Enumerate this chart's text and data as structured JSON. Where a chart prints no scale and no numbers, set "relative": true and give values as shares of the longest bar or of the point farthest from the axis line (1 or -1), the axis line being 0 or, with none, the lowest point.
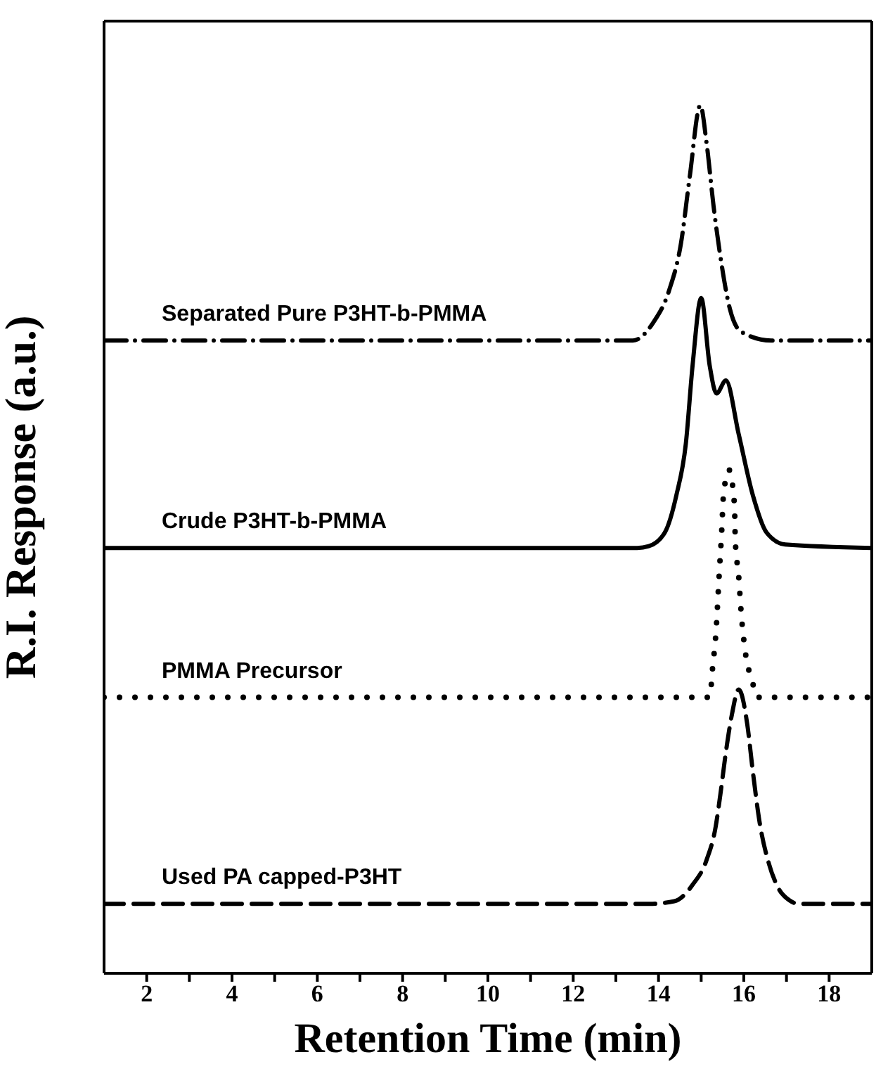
{
  "chart_data": {
    "type": "line",
    "relative": true,
    "xlabel": "Retention Time (min)",
    "ylabel": "R.I. Response (a.u.)",
    "xlim": [
      1,
      19
    ],
    "xticks": [
      2,
      {
        "value": 3,
        "label": null
      },
      4,
      {
        "value": 5,
        "label": null
      },
      6,
      {
        "value": 7,
        "label": null
      },
      8,
      {
        "value": 9,
        "label": null
      },
      10,
      {
        "value": 11,
        "label": null
      },
      12,
      {
        "value": 13,
        "label": null
      },
      14,
      {
        "value": 15,
        "label": null
      },
      16,
      {
        "value": 17,
        "label": null
      },
      18
    ],
    "series": [
      {
        "name": "Separated Pure P3HT-b-PMMA",
        "color": "#000000",
        "line_style": "dashdot",
        "x": [
          1,
          13.4,
          13.88,
          14.25,
          14.53,
          14.73,
          14.98,
          15.13,
          15.29,
          15.45,
          15.67,
          15.94,
          16.64,
          19
        ],
        "values": [
          0.729,
          0.729,
          0.75,
          0.787,
          0.842,
          0.917,
          1.0,
          0.955,
          0.884,
          0.826,
          0.766,
          0.739,
          0.729,
          0.729
        ]
      },
      {
        "name": "Crude P3HT-b-PMMA",
        "color": "#000000",
        "line_style": "solid",
        "x": [
          1,
          13.5,
          13.77,
          14.15,
          14.42,
          14.64,
          14.8,
          15.0,
          15.2,
          15.36,
          15.58,
          15.88,
          16.21,
          16.53,
          16.97,
          19
        ],
        "values": [
          0.49,
          0.49,
          0.492,
          0.508,
          0.551,
          0.61,
          0.701,
          0.778,
          0.7,
          0.668,
          0.683,
          0.621,
          0.551,
          0.508,
          0.494,
          0.49
        ]
      },
      {
        "name": "PMMA Precursor",
        "color": "#000000",
        "line_style": "dotted",
        "x": [
          1,
          15.2,
          15.27,
          15.35,
          15.4,
          15.43,
          15.48,
          15.52,
          15.65,
          15.78,
          15.8,
          15.88,
          15.94,
          16.03,
          16.21,
          16.3,
          19
        ],
        "values": [
          0.318,
          0.318,
          0.353,
          0.395,
          0.439,
          0.466,
          0.508,
          0.549,
          0.58,
          0.54,
          0.499,
          0.457,
          0.414,
          0.372,
          0.334,
          0.318,
          0.318
        ]
      },
      {
        "name": "Used PA capped-P3HT",
        "color": "#000000",
        "line_style": "dashed",
        "x": [
          1,
          13.8,
          14.37,
          14.8,
          15.13,
          15.34,
          15.45,
          15.58,
          15.72,
          15.88,
          16.08,
          16.21,
          16.37,
          16.59,
          16.8,
          17.07,
          17.3,
          19
        ],
        "values": [
          0.08,
          0.08,
          0.083,
          0.102,
          0.131,
          0.169,
          0.206,
          0.255,
          0.298,
          0.327,
          0.287,
          0.233,
          0.174,
          0.126,
          0.099,
          0.084,
          0.08,
          0.08
        ]
      }
    ]
  }
}
